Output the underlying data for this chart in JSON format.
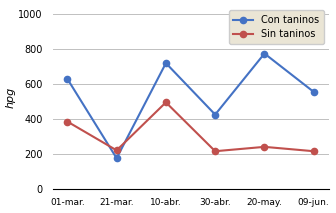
{
  "x_labels": [
    "01-mar.",
    "21-mar.",
    "10-abr.",
    "30-abr.",
    "20-may.",
    "09-jun."
  ],
  "con_taninos_x": [
    1,
    2,
    3,
    4,
    5,
    6
  ],
  "con_taninos_y": [
    630,
    175,
    720,
    425,
    775,
    555
  ],
  "sin_taninos_x": [
    1,
    2,
    3,
    4,
    5,
    6
  ],
  "sin_taninos_y": [
    385,
    220,
    495,
    215,
    240,
    215
  ],
  "x_tick_positions": [
    0,
    1,
    2,
    3,
    4,
    5
  ],
  "color_con": "#4472C4",
  "color_sin": "#C0504D",
  "ylabel": "hpg",
  "ylim": [
    0,
    1050
  ],
  "yticks": [
    0,
    200,
    400,
    600,
    800,
    1000
  ],
  "legend_con": "Con taninos",
  "legend_sin": "Sin taninos",
  "legend_bg": "#EAE5D5",
  "bg_color": "#FFFFFF",
  "plot_bg": "#FFFFFF"
}
